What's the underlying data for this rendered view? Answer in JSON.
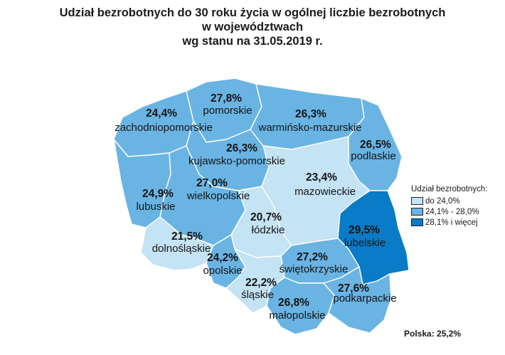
{
  "title": {
    "line1": "Udział bezrobotnych do 30 roku życia w ogólnej liczbie bezrobotnych",
    "line2": "w województwach",
    "line3": "wg stanu na 31.05.2019 r."
  },
  "colors": {
    "light": "#c4e3f4",
    "medium": "#6ab4e4",
    "dark": "#0a7bc6",
    "border": "#ffffff"
  },
  "regions": [
    {
      "name": "zachodniopomorskie",
      "value": "24,4%",
      "class": "medium"
    },
    {
      "name": "pomorskie",
      "value": "27,8%",
      "class": "medium"
    },
    {
      "name": "warmińsko-mazurskie",
      "value": "26,3%",
      "class": "medium"
    },
    {
      "name": "podlaskie",
      "value": "26,5%",
      "class": "medium"
    },
    {
      "name": "kujawsko-pomorskie",
      "value": "26,3%",
      "class": "medium"
    },
    {
      "name": "mazowieckie",
      "value": "23,4%",
      "class": "light"
    },
    {
      "name": "lubuskie",
      "value": "24,9%",
      "class": "medium"
    },
    {
      "name": "wielkopolskie",
      "value": "27,0%",
      "class": "medium"
    },
    {
      "name": "łódzkie",
      "value": "20,7%",
      "class": "light"
    },
    {
      "name": "lubelskie",
      "value": "29,5%",
      "class": "dark"
    },
    {
      "name": "dolnośląskie",
      "value": "21,5%",
      "class": "light"
    },
    {
      "name": "opolskie",
      "value": "24,2%",
      "class": "medium"
    },
    {
      "name": "świętokrzyskie",
      "value": "27,2%",
      "class": "medium"
    },
    {
      "name": "śląskie",
      "value": "22,2%",
      "class": "light"
    },
    {
      "name": "małopolskie",
      "value": "26,8%",
      "class": "medium"
    },
    {
      "name": "podkarpackie",
      "value": "27,6%",
      "class": "medium"
    }
  ],
  "legend": {
    "title": "Udział bezrobotnych:",
    "items": [
      {
        "label": "do 24,0%",
        "color": "#c4e3f4"
      },
      {
        "label": "24,1% - 28,0%",
        "color": "#6ab4e4"
      },
      {
        "label": "28,1% i więcej",
        "color": "#0a7bc6"
      }
    ]
  },
  "footer": "Polska: 25,2%"
}
